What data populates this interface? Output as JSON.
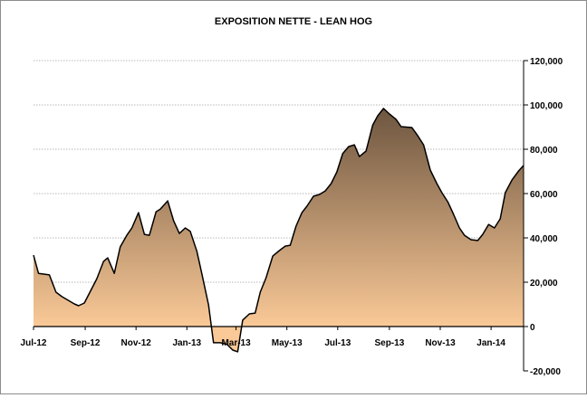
{
  "chart_data": {
    "type": "area",
    "title": "EXPOSITION NETTE - LEAN HOG",
    "xlabel": "",
    "ylabel": "",
    "ylim": [
      -20000,
      120000
    ],
    "yticks": [
      -20000,
      0,
      20000,
      40000,
      60000,
      80000,
      100000,
      120000
    ],
    "ytick_labels": [
      "-20,000",
      "0",
      "20,000",
      "40,000",
      "60,000",
      "80,000",
      "100,000",
      "120,000"
    ],
    "y_axis_side": "right",
    "xticks": [
      "2012-07-01",
      "2012-09-01",
      "2012-11-01",
      "2013-01-01",
      "2013-03-01",
      "2013-05-01",
      "2013-07-01",
      "2013-09-01",
      "2013-11-01",
      "2014-01-01"
    ],
    "xtick_labels": [
      "Jul-12",
      "Sep-12",
      "Nov-12",
      "Jan-13",
      "Mar-13",
      "May-13",
      "Jul-13",
      "Sep-13",
      "Nov-13",
      "Jan-14"
    ],
    "xlim": [
      "2012-07-01",
      "2014-02-09"
    ],
    "grid": "horizontal dotted",
    "colors": {
      "fill_top": "#6e5640",
      "fill_bottom": "#fac997",
      "line": "#000000",
      "grid": "#a0a0a0"
    },
    "x": [
      "2012-07-01",
      "2012-07-07",
      "2012-07-20",
      "2012-07-28",
      "2012-08-04",
      "2012-08-19",
      "2012-08-24",
      "2012-08-31",
      "2012-09-15",
      "2012-09-23",
      "2012-09-28",
      "2012-10-06",
      "2012-10-13",
      "2012-10-21",
      "2012-10-27",
      "2012-11-04",
      "2012-11-11",
      "2012-11-17",
      "2012-11-25",
      "2012-11-30",
      "2012-12-09",
      "2012-12-16",
      "2012-12-23",
      "2012-12-30",
      "2013-01-05",
      "2013-01-13",
      "2013-01-19",
      "2013-01-27",
      "2013-02-02",
      "2013-02-10",
      "2013-02-18",
      "2013-02-25",
      "2013-03-03",
      "2013-03-09",
      "2013-03-17",
      "2013-03-24",
      "2013-03-30",
      "2013-04-06",
      "2013-04-14",
      "2013-04-22",
      "2013-04-29",
      "2013-05-05",
      "2013-05-12",
      "2013-05-19",
      "2013-05-25",
      "2013-06-02",
      "2013-06-09",
      "2013-06-16",
      "2013-06-23",
      "2013-06-30",
      "2013-07-07",
      "2013-07-14",
      "2013-07-21",
      "2013-07-27",
      "2013-08-04",
      "2013-08-12",
      "2013-08-18",
      "2013-08-25",
      "2013-09-01",
      "2013-09-09",
      "2013-09-15",
      "2013-09-28",
      "2013-10-05",
      "2013-10-12",
      "2013-10-20",
      "2013-10-28",
      "2013-11-03",
      "2013-11-10",
      "2013-11-17",
      "2013-11-24",
      "2013-11-30",
      "2013-12-08",
      "2013-12-16",
      "2013-12-22",
      "2013-12-29",
      "2014-01-05",
      "2014-01-12",
      "2014-01-18",
      "2014-01-26",
      "2014-02-03",
      "2014-02-09"
    ],
    "values": [
      32200,
      24000,
      23300,
      15500,
      13500,
      10200,
      9400,
      10600,
      21600,
      29400,
      31000,
      24000,
      35900,
      41200,
      44500,
      51400,
      41600,
      41200,
      51800,
      53000,
      56700,
      47800,
      42000,
      44500,
      43000,
      34000,
      23700,
      9800,
      -7300,
      -7300,
      -8000,
      -10600,
      -11400,
      2900,
      5700,
      6100,
      15500,
      22000,
      31800,
      34300,
      36300,
      36700,
      45300,
      51400,
      54300,
      58800,
      59600,
      61200,
      64500,
      69800,
      78000,
      81200,
      82000,
      76700,
      79200,
      91000,
      95100,
      98400,
      95900,
      93500,
      90200,
      89800,
      86100,
      82000,
      70600,
      64500,
      60400,
      56300,
      50600,
      44500,
      41200,
      39200,
      38800,
      41600,
      46100,
      44500,
      48600,
      60400,
      66100,
      70200,
      72700
    ]
  }
}
